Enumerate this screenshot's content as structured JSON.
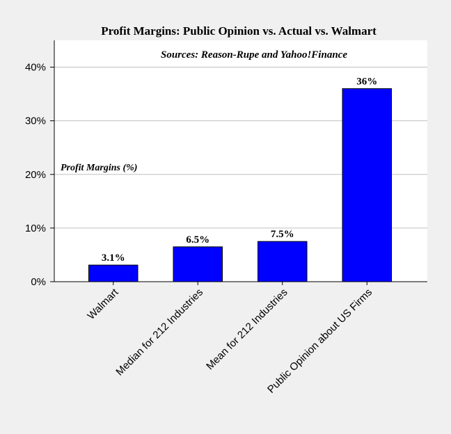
{
  "chart_data": {
    "type": "bar",
    "title": "Profit Margins: Public Opinion vs. Actual vs. Walmart",
    "subtitle": "Sources: Reason-Rupe and Yahoo!Finance",
    "annotation": "Profit Margins (%)",
    "categories": [
      "Walmart",
      "Median for 212 Industries",
      "Mean for 212 Industries",
      "Public Opinion about US Firms"
    ],
    "values": [
      3.1,
      6.5,
      7.5,
      36
    ],
    "value_labels": [
      "3.1%",
      "6.5%",
      "7.5%",
      "36%"
    ],
    "color": "#0000ff",
    "ylim": [
      0,
      45
    ],
    "yticks": [
      {
        "value": 0,
        "label": "0%"
      },
      {
        "value": 10,
        "label": "10%"
      },
      {
        "value": 20,
        "label": "20%"
      },
      {
        "value": 30,
        "label": "30%"
      },
      {
        "value": 40,
        "label": "40%"
      }
    ],
    "grid": true
  }
}
